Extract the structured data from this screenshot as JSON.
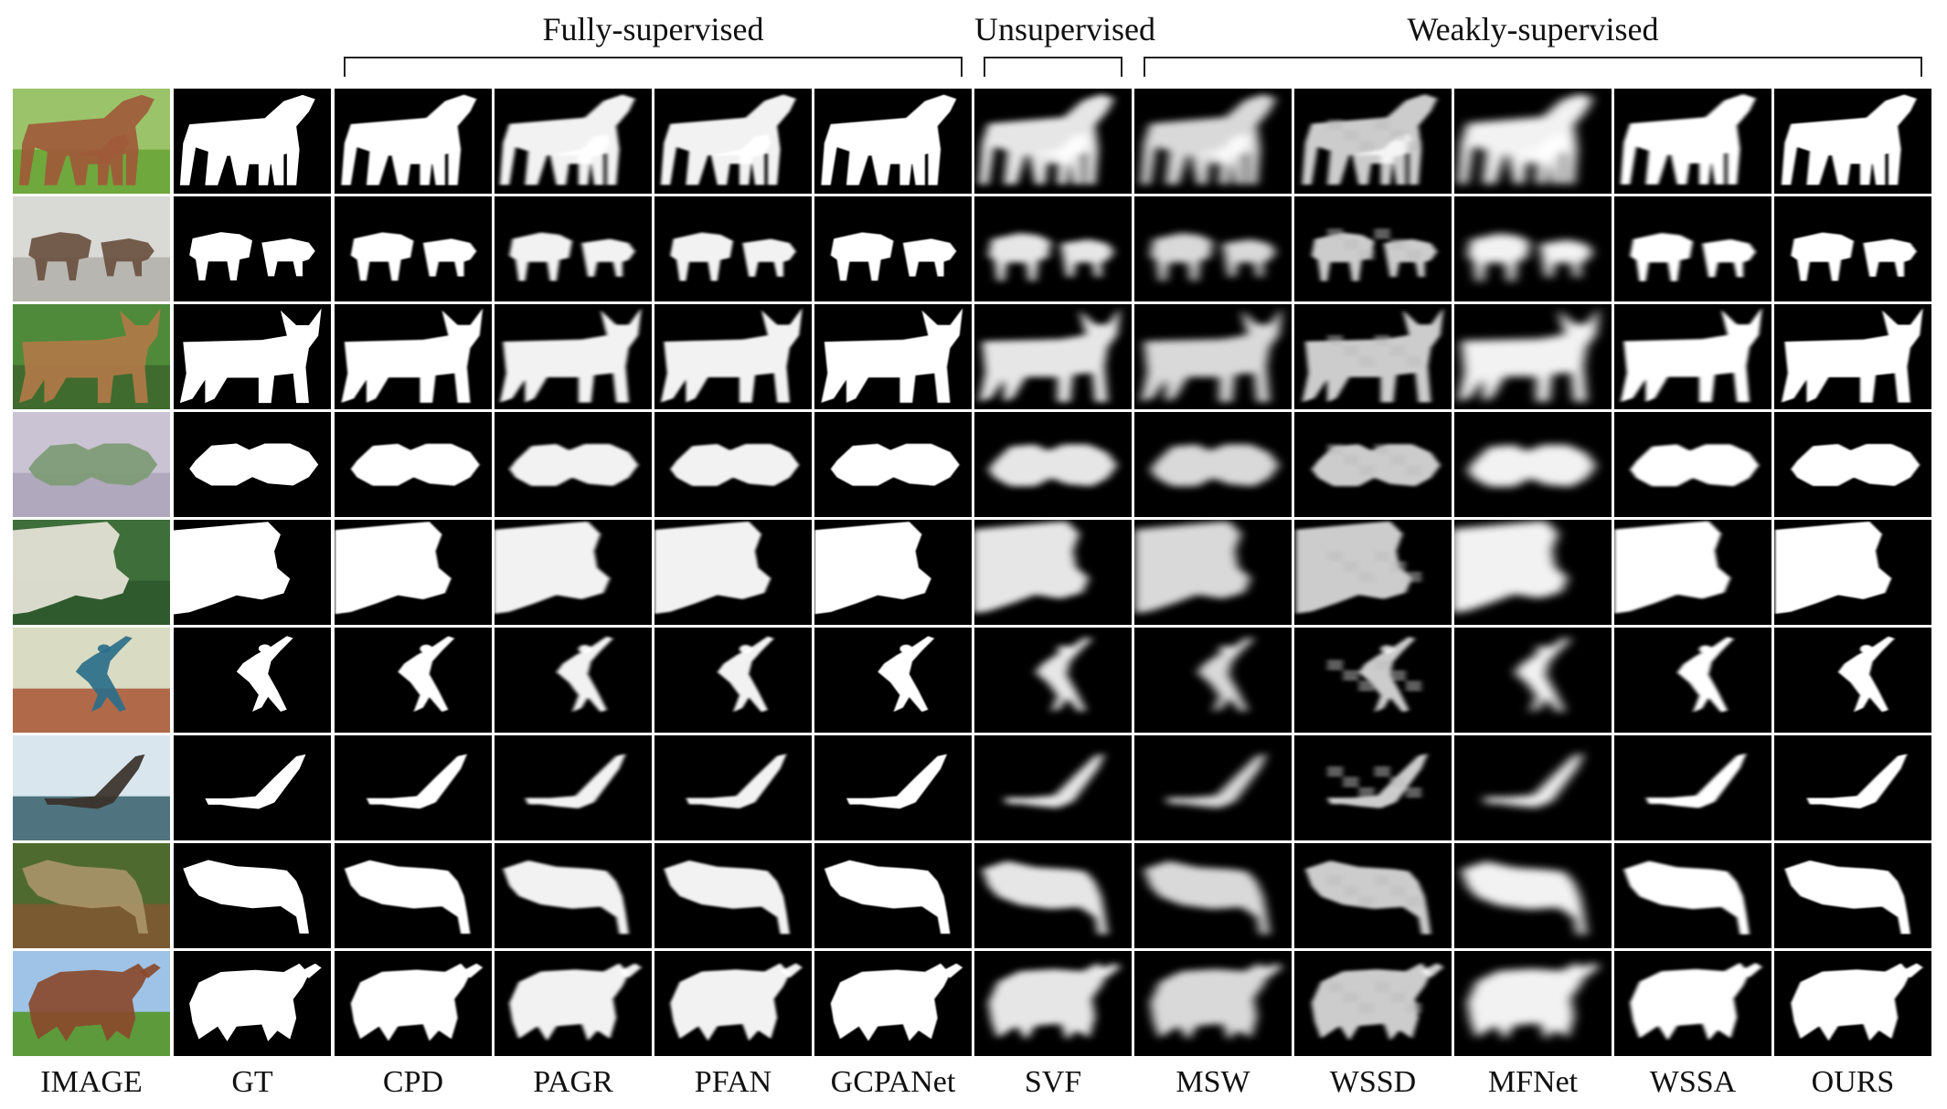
{
  "figure": {
    "groups": [
      {
        "label": "Fully-supervised",
        "first_col": 2,
        "last_col": 5
      },
      {
        "label": "Unsupervised",
        "first_col": 6,
        "last_col": 6
      },
      {
        "label": "Weakly-supervised",
        "first_col": 7,
        "last_col": 11
      }
    ],
    "columns": [
      "IMAGE",
      "GT",
      "CPD",
      "PAGR",
      "PFAN",
      "GCPANet",
      "SVF",
      "MSW",
      "WSSD",
      "MFNet",
      "WSSA",
      "OURS"
    ],
    "rows": [
      "horses",
      "rams",
      "dog",
      "folded-banknote",
      "cow-head",
      "thrower",
      "eagle",
      "leopard",
      "bull"
    ],
    "colors": {
      "mask_bg": "#000000",
      "mask_fg": "#ffffff",
      "text": "#111111"
    }
  }
}
